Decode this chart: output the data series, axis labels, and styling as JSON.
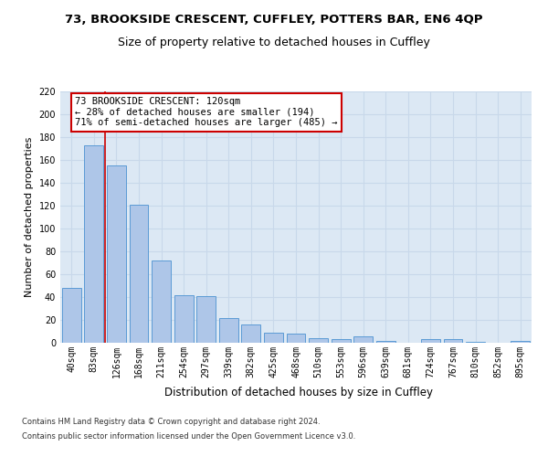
{
  "title1": "73, BROOKSIDE CRESCENT, CUFFLEY, POTTERS BAR, EN6 4QP",
  "title2": "Size of property relative to detached houses in Cuffley",
  "xlabel": "Distribution of detached houses by size in Cuffley",
  "ylabel": "Number of detached properties",
  "categories": [
    "40sqm",
    "83sqm",
    "126sqm",
    "168sqm",
    "211sqm",
    "254sqm",
    "297sqm",
    "339sqm",
    "382sqm",
    "425sqm",
    "468sqm",
    "510sqm",
    "553sqm",
    "596sqm",
    "639sqm",
    "681sqm",
    "724sqm",
    "767sqm",
    "810sqm",
    "852sqm",
    "895sqm"
  ],
  "values": [
    48,
    173,
    155,
    121,
    72,
    42,
    41,
    22,
    16,
    9,
    8,
    4,
    3,
    6,
    2,
    0,
    3,
    3,
    1,
    0,
    2
  ],
  "bar_color": "#aec6e8",
  "bar_edge_color": "#5b9bd5",
  "marker_line_color": "#cc0000",
  "annotation_text": "73 BROOKSIDE CRESCENT: 120sqm\n← 28% of detached houses are smaller (194)\n71% of semi-detached houses are larger (485) →",
  "annotation_box_color": "#ffffff",
  "annotation_box_edge": "#cc0000",
  "ylim": [
    0,
    220
  ],
  "yticks": [
    0,
    20,
    40,
    60,
    80,
    100,
    120,
    140,
    160,
    180,
    200,
    220
  ],
  "grid_color": "#c8d8ea",
  "background_color": "#dce8f4",
  "footer1": "Contains HM Land Registry data © Crown copyright and database right 2024.",
  "footer2": "Contains public sector information licensed under the Open Government Licence v3.0.",
  "title1_fontsize": 9.5,
  "title2_fontsize": 9,
  "tick_fontsize": 7,
  "ylabel_fontsize": 8,
  "xlabel_fontsize": 8.5,
  "annotation_fontsize": 7.5
}
